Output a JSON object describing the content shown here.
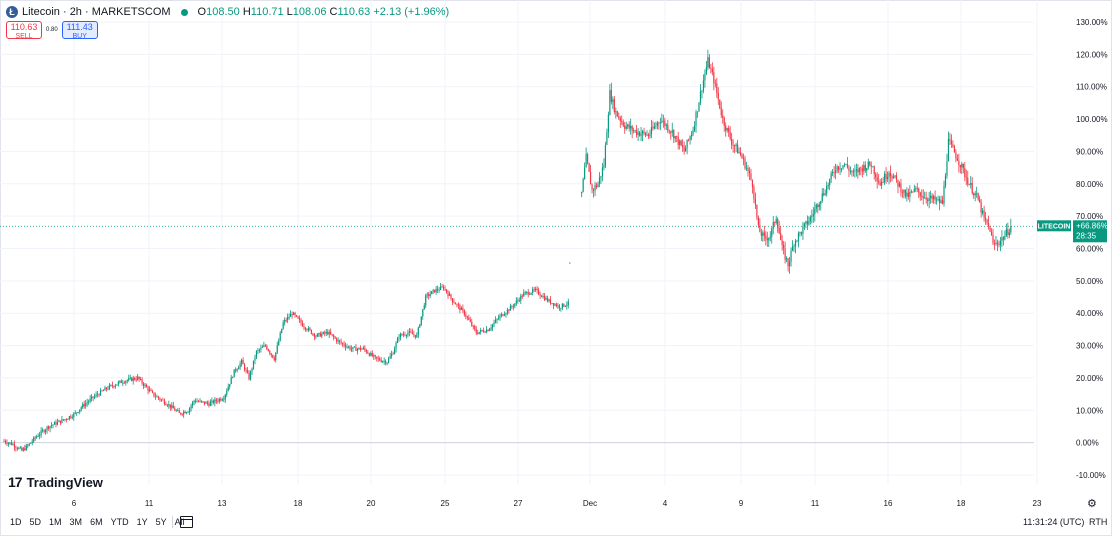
{
  "legend": {
    "logo": "Ł",
    "symbol": "Litecoin · 2h · MARKETSCOM",
    "open_key": "O",
    "open": "108.50",
    "high_key": "H",
    "high": "110.71",
    "low_key": "L",
    "low": "108.06",
    "close_key": "C",
    "close": "110.63",
    "change": "+2.13 (+1.96%)"
  },
  "trade": {
    "sell_price": "110.63",
    "sell_label": "SELL",
    "spread": "0.80",
    "buy_price": "111.43",
    "buy_label": "BUY"
  },
  "branding": {
    "logo_mark": "17",
    "name": "TradingView"
  },
  "bottom_bar": {
    "ranges": [
      "1D",
      "5D",
      "1M",
      "3M",
      "6M",
      "YTD",
      "1Y",
      "5Y",
      "All"
    ],
    "clock": "11:31:24 (UTC)",
    "session": "RTH"
  },
  "settings_icon": "gear-icon",
  "chart_data": {
    "type": "candlestick",
    "title": "Litecoin · 2h · MARKETSCOM",
    "y_axis": {
      "unit": "%",
      "min": -10,
      "max": 130,
      "ticks": [
        -10,
        0,
        10,
        20,
        30,
        40,
        50,
        60,
        70,
        80,
        90,
        100,
        110,
        120,
        130
      ],
      "tick_labels": [
        "-10.00%",
        "0.00%",
        "10.00%",
        "20.00%",
        "30.00%",
        "40.00%",
        "50.00%",
        "60.00%",
        "70.00%",
        "80.00%",
        "90.00%",
        "100.00%",
        "110.00%",
        "120.00%",
        "130.00%"
      ]
    },
    "x_axis": {
      "tick_labels": [
        "6",
        "11",
        "13",
        "18",
        "20",
        "25",
        "27",
        "Dec",
        "4",
        "9",
        "11",
        "16",
        "18",
        "23"
      ]
    },
    "baseline": 0,
    "last_value_label": {
      "symbol": "LITECOIN",
      "value": "+66.86%",
      "countdown": "28:35",
      "value_pct": 66.86
    },
    "colors": {
      "up": "#089981",
      "down": "#f23645",
      "grid": "#f0f3fa",
      "baseline": "#d1d4dc",
      "accent": "#22ab94"
    },
    "series": [
      {
        "name": "Litecoin",
        "anchors": [
          [
            0,
            0.5
          ],
          [
            6,
            -0.5
          ],
          [
            12,
            -2.5
          ],
          [
            16,
            -1
          ],
          [
            22,
            2
          ],
          [
            30,
            5
          ],
          [
            40,
            7
          ],
          [
            48,
            9
          ],
          [
            52,
            11
          ],
          [
            60,
            14
          ],
          [
            70,
            17
          ],
          [
            80,
            19
          ],
          [
            90,
            20
          ],
          [
            100,
            15
          ],
          [
            110,
            12
          ],
          [
            118,
            9
          ],
          [
            124,
            10
          ],
          [
            128,
            13
          ],
          [
            138,
            12
          ],
          [
            148,
            14
          ],
          [
            155,
            22
          ],
          [
            160,
            25
          ],
          [
            165,
            20
          ],
          [
            170,
            28
          ],
          [
            176,
            30
          ],
          [
            182,
            26
          ],
          [
            188,
            37
          ],
          [
            194,
            40
          ],
          [
            202,
            36
          ],
          [
            210,
            33
          ],
          [
            218,
            34
          ],
          [
            226,
            31
          ],
          [
            234,
            29
          ],
          [
            242,
            29
          ],
          [
            250,
            26
          ],
          [
            258,
            25
          ],
          [
            262,
            28
          ],
          [
            266,
            33
          ],
          [
            272,
            34
          ],
          [
            278,
            33
          ],
          [
            284,
            45
          ],
          [
            290,
            47
          ],
          [
            296,
            48
          ],
          [
            302,
            44
          ],
          [
            310,
            40
          ],
          [
            318,
            34
          ],
          [
            326,
            35
          ],
          [
            334,
            39
          ],
          [
            342,
            42
          ],
          [
            350,
            46
          ],
          [
            358,
            47
          ],
          [
            366,
            44
          ],
          [
            374,
            42
          ],
          [
            380,
            43
          ]
        ],
        "isolated_point": [
          381,
          55.5
        ],
        "anchors_dec": [
          [
            389,
            77
          ],
          [
            392,
            88
          ],
          [
            396,
            78
          ],
          [
            400,
            80
          ],
          [
            404,
            86
          ],
          [
            408,
            108
          ],
          [
            412,
            102
          ],
          [
            418,
            98
          ],
          [
            426,
            96
          ],
          [
            434,
            95
          ],
          [
            442,
            100
          ],
          [
            450,
            96
          ],
          [
            458,
            90
          ],
          [
            464,
            97
          ],
          [
            470,
            110
          ],
          [
            474,
            118
          ],
          [
            478,
            112
          ],
          [
            484,
            100
          ],
          [
            490,
            93
          ],
          [
            496,
            89
          ],
          [
            500,
            85
          ],
          [
            504,
            80
          ],
          [
            508,
            66
          ],
          [
            512,
            63
          ],
          [
            516,
            64
          ],
          [
            520,
            70
          ],
          [
            524,
            60
          ],
          [
            528,
            55
          ],
          [
            532,
            62
          ],
          [
            538,
            66
          ],
          [
            544,
            70
          ],
          [
            548,
            74
          ],
          [
            554,
            79
          ],
          [
            560,
            85
          ],
          [
            566,
            86
          ],
          [
            572,
            83
          ],
          [
            578,
            85
          ],
          [
            584,
            86
          ],
          [
            590,
            80
          ],
          [
            596,
            84
          ],
          [
            602,
            80
          ],
          [
            608,
            76
          ],
          [
            614,
            78
          ],
          [
            620,
            76
          ],
          [
            626,
            75
          ],
          [
            632,
            74
          ],
          [
            636,
            93
          ],
          [
            642,
            88
          ],
          [
            646,
            84
          ],
          [
            650,
            80
          ],
          [
            656,
            75
          ],
          [
            660,
            69
          ],
          [
            664,
            66
          ],
          [
            666,
            61
          ],
          [
            670,
            62
          ],
          [
            674,
            64
          ],
          [
            678,
            66.86
          ]
        ],
        "open": 108.5,
        "high": 110.71,
        "low": 108.06,
        "close": 110.63
      }
    ]
  }
}
